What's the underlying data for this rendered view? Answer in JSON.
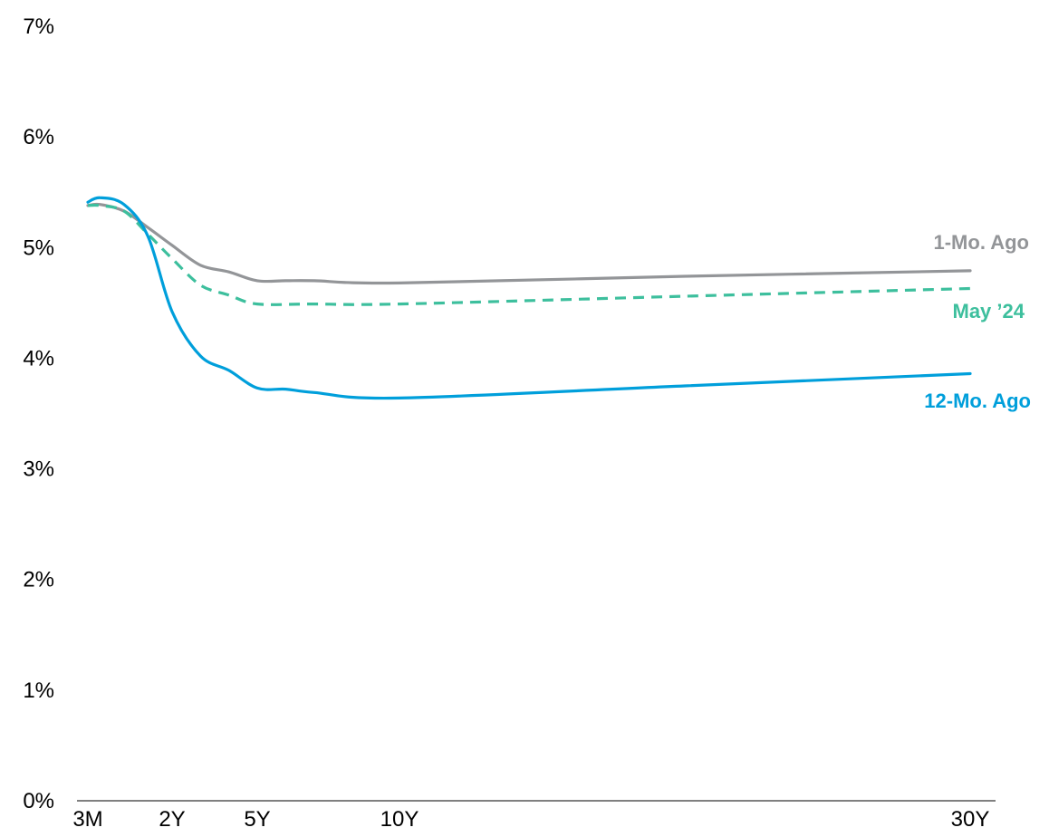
{
  "chart_data": {
    "type": "line",
    "title": "",
    "xlabel": "",
    "ylabel": "",
    "categories": [
      "3M",
      "2Y",
      "5Y",
      "10Y",
      "30Y"
    ],
    "y_ticks": [
      "0%",
      "1%",
      "2%",
      "3%",
      "4%",
      "5%",
      "6%",
      "7%"
    ],
    "ylim": [
      0,
      7
    ],
    "x_range_years": [
      0.25,
      30
    ],
    "grid": false,
    "series": [
      {
        "name": "1-Mo. Ago",
        "color": "#939598",
        "dash": "solid",
        "points": [
          [
            0.25,
            5.38
          ],
          [
            0.5,
            5.39
          ],
          [
            1,
            5.33
          ],
          [
            1.5,
            5.18
          ],
          [
            2,
            5.02
          ],
          [
            3,
            4.84
          ],
          [
            4,
            4.78
          ],
          [
            5,
            4.7
          ],
          [
            6,
            4.7
          ],
          [
            7,
            4.7
          ],
          [
            10,
            4.68
          ],
          [
            20,
            4.74
          ],
          [
            30,
            4.79
          ]
        ]
      },
      {
        "name": "May ’24",
        "color": "#3dbf9d",
        "dash": "dashed",
        "points": [
          [
            0.25,
            5.38
          ],
          [
            0.5,
            5.38
          ],
          [
            1,
            5.33
          ],
          [
            1.5,
            5.12
          ],
          [
            2,
            4.9
          ],
          [
            3,
            4.66
          ],
          [
            4,
            4.57
          ],
          [
            5,
            4.49
          ],
          [
            7,
            4.49
          ],
          [
            10,
            4.49
          ],
          [
            20,
            4.56
          ],
          [
            30,
            4.63
          ]
        ]
      },
      {
        "name": "12-Mo. Ago",
        "color": "#009fdb",
        "dash": "solid",
        "points": [
          [
            0.25,
            5.41
          ],
          [
            0.5,
            5.45
          ],
          [
            1,
            5.39
          ],
          [
            1.5,
            5.1
          ],
          [
            2,
            4.42
          ],
          [
            3,
            4.02
          ],
          [
            4,
            3.89
          ],
          [
            5,
            3.73
          ],
          [
            6,
            3.72
          ],
          [
            7,
            3.69
          ],
          [
            10,
            3.64
          ],
          [
            20,
            3.75
          ],
          [
            30,
            3.86
          ]
        ]
      }
    ]
  }
}
